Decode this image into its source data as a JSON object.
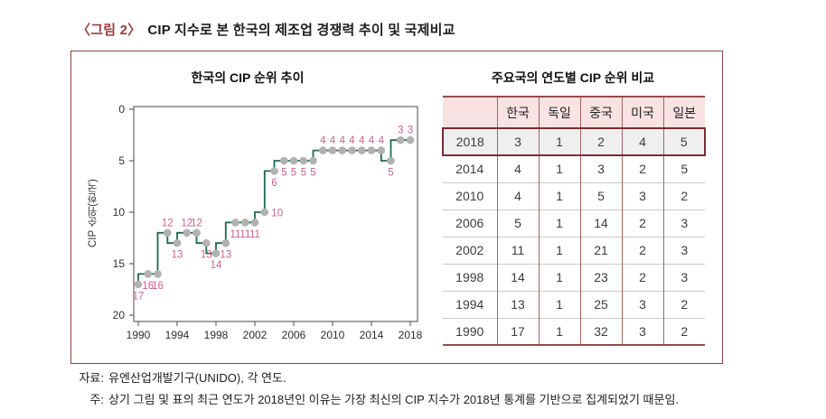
{
  "figure": {
    "tag": "〈그림 2〉",
    "title": "CIP 지수로 본 한국의 제조업 경쟁력 추이 및 국제비교"
  },
  "chart_data": {
    "type": "line",
    "title": "한국의 CIP 순위 추이",
    "xlabel": "",
    "ylabel": "CIP 순위(한국)",
    "x": [
      1990,
      1991,
      1992,
      1993,
      1994,
      1995,
      1996,
      1997,
      1998,
      1999,
      2000,
      2001,
      2002,
      2003,
      2004,
      2005,
      2006,
      2007,
      2008,
      2009,
      2010,
      2011,
      2012,
      2013,
      2014,
      2015,
      2016,
      2017,
      2018
    ],
    "values": [
      17,
      16,
      16,
      12,
      13,
      12,
      12,
      13,
      14,
      13,
      11,
      11,
      11,
      10,
      6,
      5,
      5,
      5,
      5,
      4,
      4,
      4,
      4,
      4,
      4,
      4,
      5,
      3,
      3
    ],
    "label_positions": [
      "below",
      "below",
      "below",
      "above",
      "below",
      "above",
      "above",
      "below",
      "below",
      "below",
      "below",
      "below",
      "below",
      "right",
      "below",
      "below",
      "below",
      "below",
      "below",
      "above",
      "above",
      "above",
      "above",
      "above",
      "above",
      "above",
      "below",
      "above",
      "above"
    ],
    "y_ticks": [
      0,
      5,
      10,
      15,
      20
    ],
    "x_ticks": [
      1990,
      1994,
      1998,
      2002,
      2006,
      2010,
      2014,
      2018
    ],
    "ylim": [
      0,
      20
    ],
    "y_axis_inverted": true,
    "grid": false,
    "legend": "none",
    "step_style": "vertical-then-horizontal",
    "line_color": "#1a6b4d",
    "marker_color": "#b3b1ae",
    "label_color": "#cf5f8e"
  },
  "table": {
    "title": "주요국의 연도별 CIP 순위 비교",
    "columns": [
      "",
      "한국",
      "독일",
      "중국",
      "미국",
      "일본"
    ],
    "rows": [
      {
        "year": "2018",
        "values": [
          3,
          1,
          2,
          4,
          5
        ],
        "highlight": true
      },
      {
        "year": "2014",
        "values": [
          4,
          1,
          3,
          2,
          5
        ],
        "highlight": false
      },
      {
        "year": "2010",
        "values": [
          4,
          1,
          5,
          3,
          2
        ],
        "highlight": false
      },
      {
        "year": "2006",
        "values": [
          5,
          1,
          14,
          2,
          3
        ],
        "highlight": false
      },
      {
        "year": "2002",
        "values": [
          11,
          1,
          21,
          2,
          3
        ],
        "highlight": false
      },
      {
        "year": "1998",
        "values": [
          14,
          1,
          23,
          2,
          3
        ],
        "highlight": false
      },
      {
        "year": "1994",
        "values": [
          13,
          1,
          25,
          3,
          2
        ],
        "highlight": false
      },
      {
        "year": "1990",
        "values": [
          17,
          1,
          32,
          3,
          2
        ],
        "highlight": false
      }
    ]
  },
  "notes": {
    "source_label": "자료:",
    "source_text": "유엔산업개발기구(UNIDO), 각 연도.",
    "note_label": "주:",
    "note_text": "상기 그림 및 표의 최근 연도가 2018년인 이유는 가장 최신의 CIP 지수가 2018년 통계를 기반으로 집계되었기 때문임."
  },
  "colors": {
    "figure_tag": "#a03b40",
    "box_border": "#8c4347",
    "table_border": "#9a4b4b",
    "table_header_bg": "#f9e2e2",
    "highlight_border": "#7b2b35",
    "highlight_bg": "#f0eff0",
    "line_green": "#1a6b4d",
    "marker_gray": "#b3b1ae",
    "point_label_pink": "#cf5f8e"
  }
}
